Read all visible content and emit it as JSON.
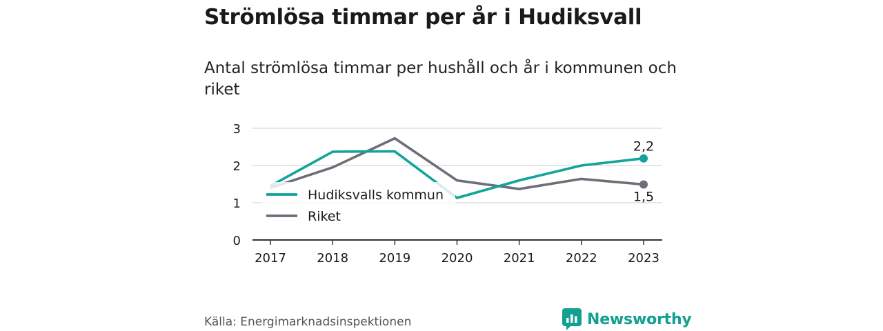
{
  "title": "Strömlösa timmar per år i Hudiksvall",
  "subtitle": "Antal strömlösa timmar per hushåll och år i kommunen och riket",
  "source": "Källa: Energimarknadsinspektionen",
  "brand": {
    "name": "Newsworthy",
    "icon": "newsworthy-logo-icon",
    "color": "#12a08f"
  },
  "chart_data": {
    "type": "line",
    "x": [
      "2017",
      "2018",
      "2019",
      "2020",
      "2021",
      "2022",
      "2023"
    ],
    "yticks": [
      0,
      1,
      2,
      3
    ],
    "ylim": [
      0,
      3
    ],
    "grid": true,
    "legend_position": "left, inside plot",
    "series": [
      {
        "name": "Hudiksvalls kommun",
        "color": "#12a39a",
        "values": [
          1.45,
          2.37,
          2.38,
          1.13,
          1.6,
          2.0,
          2.19
        ],
        "end_label": "2,2"
      },
      {
        "name": "Riket",
        "color": "#6e6e78",
        "values": [
          1.4,
          1.95,
          2.73,
          1.6,
          1.37,
          1.64,
          1.49
        ],
        "end_label": "1,5"
      }
    ]
  }
}
